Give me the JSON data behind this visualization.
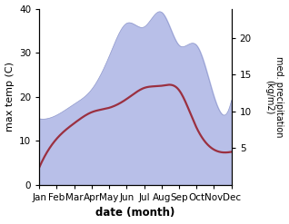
{
  "months": [
    "Jan",
    "Feb",
    "Mar",
    "Apr",
    "May",
    "Jun",
    "Jul",
    "Aug",
    "Sep",
    "Oct",
    "Nov",
    "Dec"
  ],
  "temp": [
    4.0,
    10.5,
    14.0,
    16.5,
    17.5,
    19.5,
    22.0,
    22.5,
    21.5,
    13.0,
    8.0,
    7.5
  ],
  "precip": [
    9.0,
    9.5,
    11.0,
    13.0,
    17.5,
    22.0,
    21.5,
    23.5,
    19.0,
    19.0,
    12.0,
    11.5
  ],
  "temp_color": "#9b3040",
  "precip_fill_color": "#b8bfe8",
  "precip_edge_color": "#9099cc",
  "bg_color": "#ffffff",
  "xlabel": "date (month)",
  "ylabel_left": "max temp (C)",
  "ylabel_right": "med. precipitation\n(kg/m2)",
  "ylim_left": [
    0,
    40
  ],
  "ylim_right": [
    0,
    24
  ],
  "yticks_left": [
    0,
    10,
    20,
    30,
    40
  ],
  "yticks_right": [
    5,
    10,
    15,
    20
  ],
  "line_width": 1.6,
  "figsize": [
    3.18,
    2.47
  ],
  "dpi": 100
}
